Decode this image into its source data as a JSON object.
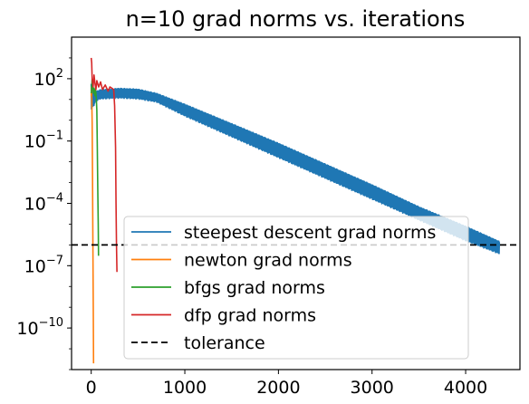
{
  "chart_data": {
    "type": "line",
    "title": "n=10 grad norms vs. iterations",
    "xlabel": "",
    "ylabel": "",
    "yscale": "log",
    "xlim": [
      -210,
      4580
    ],
    "ylim": [
      1e-12,
      10000.0
    ],
    "x_ticks": [
      0,
      1000,
      2000,
      3000,
      4000
    ],
    "x_tick_labels": [
      "0",
      "1000",
      "2000",
      "3000",
      "4000"
    ],
    "y_ticks": [
      {
        "value": 100.0,
        "base": "10",
        "exp": "2"
      },
      {
        "value": 0.1,
        "base": "10",
        "exp": "−1"
      },
      {
        "value": 0.0001,
        "base": "10",
        "exp": "−4"
      },
      {
        "value": 1e-07,
        "base": "10",
        "exp": "−7"
      },
      {
        "value": 1e-10,
        "base": "10",
        "exp": "−10"
      }
    ],
    "grid": false,
    "legend_position": "lower-center",
    "series": [
      {
        "name": "steepest descent grad norms",
        "color": "#1f77b4",
        "style": "solid",
        "band": true,
        "x": [
          0,
          30,
          50,
          100,
          300,
          500,
          700,
          1000,
          1500,
          2000,
          2500,
          3000,
          3500,
          4000,
          4360
        ],
        "y_hi": [
          60,
          30,
          25,
          30,
          35,
          32,
          20,
          6,
          0.7,
          0.08,
          0.008,
          0.0008,
          7e-05,
          8e-06,
          1.5e-06
        ],
        "y_lo": [
          3,
          5,
          8,
          10,
          11,
          10,
          7,
          1.5,
          0.15,
          0.015,
          0.0015,
          0.00015,
          1.5e-05,
          1.5e-06,
          3.5e-07
        ]
      },
      {
        "name": "newton grad norms",
        "color": "#ff7f0e",
        "style": "solid",
        "x": [
          0,
          3,
          6,
          10,
          14,
          18,
          22,
          25
        ],
        "y": [
          15,
          40,
          10,
          0.8,
          0.002,
          1e-06,
          1e-09,
          2e-12
        ]
      },
      {
        "name": "bfgs grad norms",
        "color": "#2ca02c",
        "style": "solid",
        "x": [
          0,
          5,
          10,
          15,
          20,
          25,
          30,
          35,
          40,
          45,
          50,
          55,
          60,
          65,
          70,
          75,
          78
        ],
        "y": [
          20,
          40,
          100,
          60,
          30,
          20,
          35,
          25,
          15,
          30,
          20,
          10,
          3,
          0.05,
          0.0005,
          1e-05,
          3e-07
        ]
      },
      {
        "name": "dfp grad norms",
        "color": "#d62728",
        "style": "solid",
        "x": [
          0,
          5,
          10,
          20,
          30,
          40,
          50,
          60,
          80,
          100,
          120,
          150,
          180,
          200,
          220,
          240,
          250,
          260,
          265,
          270,
          275
        ],
        "y": [
          1000,
          600,
          100,
          40,
          150,
          60,
          30,
          80,
          40,
          70,
          30,
          50,
          25,
          40,
          35,
          30,
          5,
          0.05,
          0.0001,
          1e-06,
          5e-08
        ]
      },
      {
        "name": "tolerance",
        "color": "#000000",
        "style": "dashed",
        "y_const": 1e-06
      }
    ]
  }
}
